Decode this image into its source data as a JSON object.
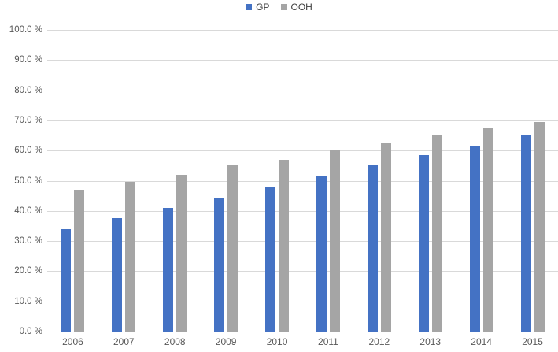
{
  "chart_data": {
    "type": "bar",
    "title": "",
    "categories": [
      "2006",
      "2007",
      "2008",
      "2009",
      "2010",
      "2011",
      "2012",
      "2013",
      "2014",
      "2015"
    ],
    "series": [
      {
        "name": "GP",
        "color": "#4472c4",
        "values": [
          34,
          37.5,
          41,
          44.5,
          48,
          51.5,
          55,
          58.5,
          61.5,
          65
        ]
      },
      {
        "name": "OOH",
        "color": "#a5a5a5",
        "values": [
          47,
          49.5,
          52,
          55,
          57,
          60,
          62.5,
          65,
          67.5,
          69.5
        ]
      }
    ],
    "xlabel": "",
    "ylabel": "",
    "ylim": [
      0,
      100
    ],
    "y_ticks": [
      "100.0 %",
      "90.0 %",
      "80.0 %",
      "70.0 %",
      "60.0 %",
      "50.0 %",
      "40.0 %",
      "30.0 %",
      "20.0 %",
      "10.0 %",
      "0.0 %"
    ],
    "grid": true,
    "legend_position": "top-center"
  },
  "colors": {
    "gridline": "#d9d9d9",
    "axis_line": "#c8c8c8",
    "tick_text": "#595959",
    "legend_text": "#404040"
  }
}
